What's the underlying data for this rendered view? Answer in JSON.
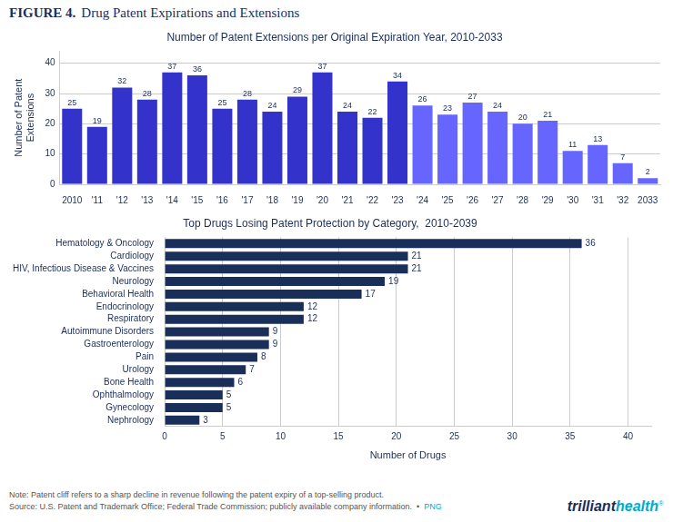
{
  "title": "FIGURE 4.",
  "subtitle": "Drug Patent Expirations and Extensions",
  "chart_data": [
    {
      "type": "bar",
      "title": "Number of Patent Extensions per Original Expiration Year, 2010-2033",
      "categories": [
        "2010",
        "'11",
        "'12",
        "'13",
        "'14",
        "'15",
        "'16",
        "'17",
        "'18",
        "'19",
        "'20",
        "'21",
        "'22",
        "'23",
        "'24",
        "'25",
        "'26",
        "'27",
        "'28",
        "'29",
        "'30",
        "'31",
        "'32",
        "2033"
      ],
      "values": [
        25,
        19,
        32,
        28,
        37,
        36,
        25,
        28,
        24,
        29,
        37,
        24,
        22,
        34,
        26,
        23,
        27,
        24,
        20,
        21,
        11,
        13,
        7,
        2
      ],
      "colors": [
        "#3333cc",
        "#3333cc",
        "#3333cc",
        "#3333cc",
        "#3333cc",
        "#3333cc",
        "#3333cc",
        "#3333cc",
        "#3333cc",
        "#3333cc",
        "#3333cc",
        "#3333cc",
        "#3333cc",
        "#3333cc",
        "#6666ff",
        "#6666ff",
        "#6666ff",
        "#6666ff",
        "#6666ff",
        "#6666ff",
        "#6666ff",
        "#6666ff",
        "#6666ff",
        "#6666ff"
      ],
      "ylabel": "Number of Patent\nExtensions",
      "ylim": [
        0,
        44
      ],
      "yticks": [
        0,
        10,
        20,
        30,
        40
      ],
      "grid": true,
      "data_labels": true
    },
    {
      "type": "bar",
      "orientation": "horizontal",
      "title": "Top Drugs Losing Patent Protection by Category,  2010-2039",
      "categories": [
        "Hematology & Oncology",
        "Cardiology",
        "HIV, Infectious Disease & Vaccines",
        "Neurology",
        "Behavioral Health",
        "Endocrinology",
        "Respiratory",
        "Autoimmune Disorders",
        "Gastroenterology",
        "Pain",
        "Urology",
        "Bone Health",
        "Ophthalmology",
        "Gynecology",
        "Nephrology"
      ],
      "values": [
        36,
        21,
        21,
        19,
        17,
        12,
        12,
        9,
        9,
        8,
        7,
        6,
        5,
        5,
        3
      ],
      "color": "#1a2e5a",
      "xlabel": "Number of Drugs",
      "xlim": [
        0,
        42
      ],
      "xticks": [
        0,
        5,
        10,
        15,
        20,
        25,
        30,
        35,
        40
      ],
      "grid": true,
      "data_labels": true
    }
  ],
  "annotations": [
    [
      {
        "text": "Note: Patent cliff refers to a sharp decline in revenue following the patent expiry of a top-selling product.",
        "color": "#555555"
      }
    ],
    [
      {
        "text": "Source: U.S. Patent and Trademark Office; Federal Trade Commission; publicly available company information.  •  ",
        "color": "#555555"
      },
      {
        "text": "PNG",
        "color": "#00aacc"
      }
    ],
    [
      {
        "text": "trilliant",
        "color": "#1a2e5a"
      },
      {
        "text": "health",
        "color": "#00aacc"
      },
      {
        "text": "®",
        "color": "#00aacc"
      }
    ]
  ]
}
